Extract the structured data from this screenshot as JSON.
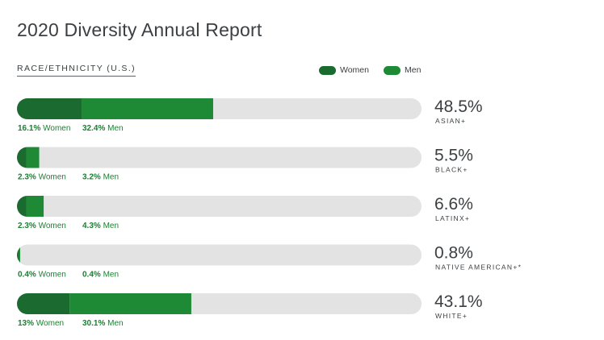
{
  "header": {
    "title": "2020 Diversity Annual Report",
    "subtitle": "RACE/ETHNICITY (U.S.)"
  },
  "legend": {
    "women": "Women",
    "men": "Men"
  },
  "colors": {
    "women": "#1b6b30",
    "men": "#1f8a36",
    "track": "#e3e3e3",
    "label_green": "#1e7e34",
    "text": "#3c4043"
  },
  "chart_data": {
    "type": "bar",
    "orientation": "horizontal",
    "stacked": true,
    "title": "2020 Diversity Annual Report",
    "subtitle": "RACE/ETHNICITY (U.S.)",
    "xlim": [
      0,
      100
    ],
    "categories": [
      "ASIAN+",
      "BLACK+",
      "LATINX+",
      "NATIVE AMERICAN+*",
      "WHITE+"
    ],
    "totals": [
      "48.5%",
      "5.5%",
      "6.6%",
      "0.8%",
      "43.1%"
    ],
    "series": [
      {
        "name": "Women",
        "values": [
          16.1,
          2.3,
          2.3,
          0.4,
          13
        ],
        "labels": [
          "16.1%",
          "2.3%",
          "2.3%",
          "0.4%",
          "13%"
        ]
      },
      {
        "name": "Men",
        "values": [
          32.4,
          3.2,
          4.3,
          0.4,
          30.1
        ],
        "labels": [
          "32.4%",
          "3.2%",
          "4.3%",
          "0.4%",
          "30.1%"
        ]
      }
    ]
  }
}
